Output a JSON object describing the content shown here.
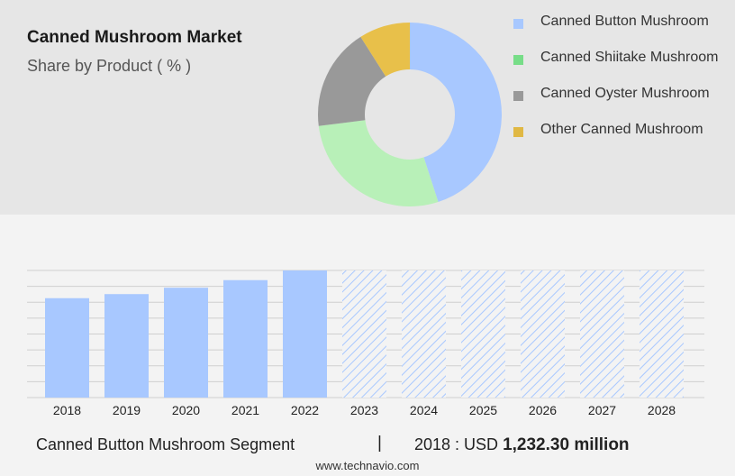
{
  "title": "Canned Mushroom Market",
  "subtitle": "Share by Product ( % )",
  "colors": {
    "button": "#a8c8ff",
    "shiitake": "#b8f0b8",
    "oyster": "#999999",
    "other": "#e8c04a",
    "bar": "#a8c8ff",
    "forecast_hatch": "#a8c8ff"
  },
  "chart_data": [
    {
      "type": "pie",
      "title": "Share by Product ( % )",
      "categories": [
        "Canned Button Mushroom",
        "Canned Shiitake Mushroom",
        "Canned Oyster Mushroom",
        "Other Canned Mushroom"
      ],
      "values": [
        45,
        28,
        18,
        9
      ],
      "colors": [
        "#a8c8ff",
        "#b8f0b8",
        "#999999",
        "#e8c04a"
      ],
      "legend_swatch_colors": [
        "#a8c8ff",
        "#77dd88",
        "#999999",
        "#e0b844"
      ],
      "donut": true,
      "legend_position": "right"
    },
    {
      "type": "bar",
      "categories": [
        "2018",
        "2019",
        "2020",
        "2021",
        "2022",
        "2023",
        "2024",
        "2025",
        "2026",
        "2027",
        "2028"
      ],
      "values": [
        1232.3,
        1283,
        1362,
        1456,
        1576,
        null,
        null,
        null,
        null,
        null,
        null
      ],
      "forecast_categories": [
        "2023",
        "2024",
        "2025",
        "2026",
        "2027",
        "2028"
      ],
      "ylim": [
        0,
        1576
      ],
      "grid": true,
      "ylabel": "",
      "xlabel": ""
    }
  ],
  "footer": {
    "segment": "Canned Button Mushroom Segment",
    "separator": "|",
    "value_prefix": "2018 : USD",
    "value": "1,232.30 million"
  },
  "source": "www.technavio.com"
}
